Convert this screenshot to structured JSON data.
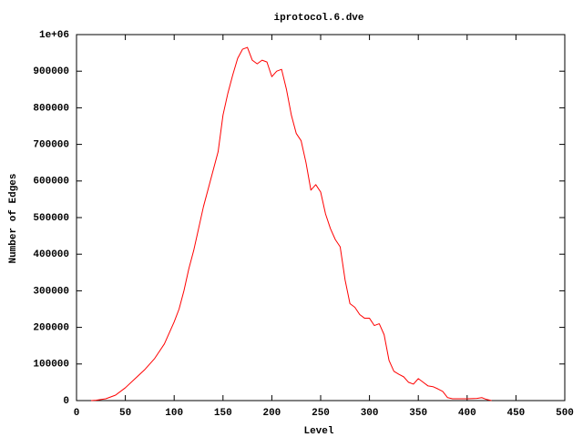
{
  "chart_data": {
    "type": "line",
    "title": "iprotocol.6.dve",
    "xlabel": "Level",
    "ylabel": "Number of Edges",
    "color": "#ff0000",
    "x": [
      15,
      20,
      30,
      40,
      50,
      60,
      70,
      80,
      90,
      100,
      105,
      110,
      115,
      120,
      125,
      130,
      135,
      140,
      145,
      150,
      155,
      160,
      165,
      170,
      175,
      180,
      185,
      190,
      195,
      200,
      205,
      210,
      215,
      220,
      225,
      230,
      235,
      240,
      245,
      250,
      255,
      260,
      265,
      270,
      275,
      280,
      285,
      290,
      295,
      300,
      305,
      310,
      315,
      320,
      325,
      330,
      335,
      340,
      345,
      350,
      355,
      360,
      365,
      370,
      375,
      380,
      385,
      400,
      410,
      415,
      420,
      425
    ],
    "values": [
      0,
      1000,
      5000,
      15000,
      35000,
      60000,
      85000,
      115000,
      155000,
      215000,
      250000,
      300000,
      360000,
      410000,
      470000,
      530000,
      580000,
      630000,
      680000,
      780000,
      840000,
      890000,
      935000,
      960000,
      965000,
      930000,
      920000,
      930000,
      925000,
      885000,
      900000,
      905000,
      850000,
      780000,
      730000,
      710000,
      650000,
      575000,
      590000,
      570000,
      510000,
      470000,
      440000,
      420000,
      330000,
      265000,
      255000,
      235000,
      225000,
      225000,
      205000,
      210000,
      180000,
      110000,
      80000,
      72000,
      65000,
      50000,
      45000,
      60000,
      50000,
      40000,
      38000,
      32000,
      25000,
      8000,
      5000,
      5000,
      6000,
      8000,
      3000,
      0
    ],
    "xlim": [
      0,
      500
    ],
    "xticks": [
      0,
      50,
      100,
      150,
      200,
      250,
      300,
      350,
      400,
      450,
      500
    ],
    "ylim": [
      0,
      1000000
    ],
    "yticks": [
      0,
      100000,
      200000,
      300000,
      400000,
      500000,
      600000,
      700000,
      800000,
      900000,
      {
        "value": 1000000,
        "label": "1e+06"
      }
    ],
    "grid": false
  }
}
